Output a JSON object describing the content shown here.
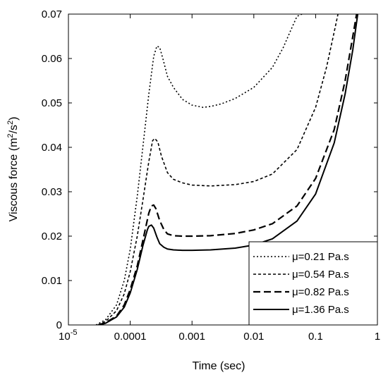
{
  "chart_data": {
    "type": "line",
    "xlabel": "Time (sec)",
    "ylabel_main": "Viscous force (m",
    "ylabel_sup1": "2",
    "ylabel_mid": "/s",
    "ylabel_sup2": "2",
    "ylabel_end": ")",
    "x_scale": "log",
    "xlim": [
      1e-05,
      1
    ],
    "ylim": [
      0,
      0.07
    ],
    "grid": false,
    "legend_position": "bottom-right",
    "x_ticks": [
      {
        "value": 1e-05,
        "base": "10",
        "exp": "-5"
      },
      {
        "value": 0.0001,
        "label": "0.0001"
      },
      {
        "value": 0.001,
        "label": "0.001"
      },
      {
        "value": 0.01,
        "label": "0.01"
      },
      {
        "value": 0.1,
        "label": "0.1"
      },
      {
        "value": 1,
        "label": "1"
      }
    ],
    "y_ticks": [
      {
        "value": 0,
        "label": "0"
      },
      {
        "value": 0.01,
        "label": "0.01"
      },
      {
        "value": 0.02,
        "label": "0.02"
      },
      {
        "value": 0.03,
        "label": "0.03"
      },
      {
        "value": 0.04,
        "label": "0.04"
      },
      {
        "value": 0.05,
        "label": "0.05"
      },
      {
        "value": 0.06,
        "label": "0.06"
      },
      {
        "value": 0.07,
        "label": "0.07"
      }
    ],
    "series": [
      {
        "name": "μ=0.21 Pa.s",
        "style": "dotted",
        "x": [
          2.8e-05,
          4e-05,
          6e-05,
          8e-05,
          0.0001,
          0.00013,
          0.00016,
          0.0002,
          0.00024,
          0.00027,
          0.0003,
          0.00034,
          0.0004,
          0.0005,
          0.0007,
          0.001,
          0.0015,
          0.002,
          0.003,
          0.005,
          0.01,
          0.02,
          0.03,
          0.04,
          0.05,
          0.06
        ],
        "y": [
          0.0,
          0.0012,
          0.0045,
          0.01,
          0.017,
          0.029,
          0.04,
          0.052,
          0.0605,
          0.0628,
          0.0625,
          0.0598,
          0.056,
          0.0535,
          0.0508,
          0.0495,
          0.049,
          0.0492,
          0.0498,
          0.051,
          0.0535,
          0.058,
          0.0625,
          0.0665,
          0.0695,
          0.07
        ]
      },
      {
        "name": "μ=0.54 Pa.s",
        "style": "dashed-short",
        "x": [
          3e-05,
          4e-05,
          6e-05,
          8e-05,
          0.0001,
          0.00013,
          0.00016,
          0.0002,
          0.00023,
          0.00025,
          0.00028,
          0.00032,
          0.0004,
          0.0005,
          0.0007,
          0.001,
          0.002,
          0.005,
          0.01,
          0.02,
          0.05,
          0.1,
          0.15,
          0.2,
          0.23
        ],
        "y": [
          0.0,
          0.0008,
          0.0032,
          0.007,
          0.012,
          0.02,
          0.028,
          0.0368,
          0.0415,
          0.042,
          0.0412,
          0.038,
          0.0343,
          0.0328,
          0.032,
          0.0315,
          0.0313,
          0.0316,
          0.0323,
          0.034,
          0.0395,
          0.049,
          0.058,
          0.066,
          0.07
        ]
      },
      {
        "name": "μ=0.82 Pa.s",
        "style": "dashed-long",
        "x": [
          3e-05,
          4e-05,
          6e-05,
          8e-05,
          0.0001,
          0.00013,
          0.00016,
          0.0002,
          0.00022,
          0.00024,
          0.00026,
          0.0003,
          0.00035,
          0.0004,
          0.0005,
          0.0007,
          0.001,
          0.002,
          0.005,
          0.01,
          0.02,
          0.05,
          0.1,
          0.2,
          0.3,
          0.4,
          0.46
        ],
        "y": [
          0.0,
          0.0005,
          0.002,
          0.0045,
          0.008,
          0.0133,
          0.019,
          0.0252,
          0.0268,
          0.027,
          0.0262,
          0.0235,
          0.0215,
          0.0205,
          0.0201,
          0.02,
          0.02,
          0.0201,
          0.0206,
          0.0214,
          0.0228,
          0.0268,
          0.033,
          0.044,
          0.055,
          0.065,
          0.07
        ]
      },
      {
        "name": "μ=1.36 Pa.s",
        "style": "solid",
        "x": [
          3.2e-05,
          4e-05,
          6e-05,
          8e-05,
          0.0001,
          0.00013,
          0.00016,
          0.00019,
          0.0002,
          0.00022,
          0.00024,
          0.00027,
          0.0003,
          0.00035,
          0.0004,
          0.0005,
          0.0007,
          0.001,
          0.002,
          0.005,
          0.01,
          0.02,
          0.05,
          0.1,
          0.2,
          0.3,
          0.4,
          0.48
        ],
        "y": [
          0.0,
          0.0004,
          0.0018,
          0.004,
          0.0072,
          0.0125,
          0.0178,
          0.0215,
          0.0222,
          0.0225,
          0.0218,
          0.0198,
          0.0183,
          0.0175,
          0.0171,
          0.0169,
          0.0168,
          0.0168,
          0.0169,
          0.0173,
          0.018,
          0.0194,
          0.0234,
          0.0295,
          0.041,
          0.052,
          0.062,
          0.07
        ]
      }
    ]
  }
}
